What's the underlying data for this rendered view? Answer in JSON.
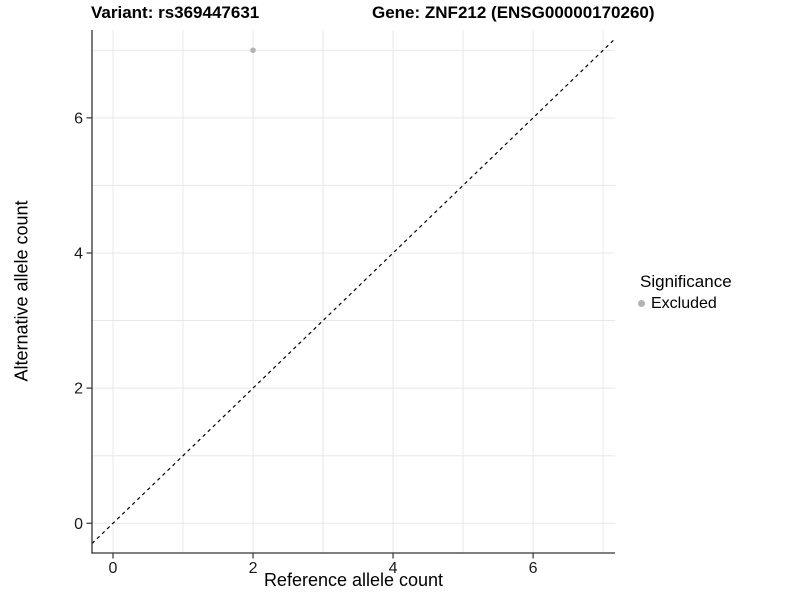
{
  "chart_data": {
    "type": "scatter",
    "title_left": "Variant: rs369447631",
    "title_right": "Gene: ZNF212 (ENSG00000170260)",
    "xlabel": "Reference allele count",
    "ylabel": "Alternative allele count",
    "xlim": [
      -0.3,
      7.17
    ],
    "ylim": [
      -0.44,
      7.3
    ],
    "x_ticks": [
      0,
      2,
      4,
      6
    ],
    "y_ticks": [
      0,
      2,
      4,
      6
    ],
    "grid_x": [
      0,
      1,
      2,
      3,
      4,
      5,
      6,
      7
    ],
    "grid_y": [
      0,
      1,
      2,
      3,
      4,
      5,
      6,
      7
    ],
    "grid": true,
    "legend_position": "right",
    "series": [
      {
        "name": "Excluded",
        "color": "#b3b3b3",
        "points": [
          {
            "x": 2,
            "y": 7
          }
        ]
      }
    ],
    "reference_line": {
      "kind": "identity y=x",
      "style": "dashed",
      "color": "#000000"
    },
    "legend": {
      "title": "Significance",
      "entries": [
        {
          "label": "Excluded",
          "color": "#b3b3b3"
        }
      ]
    },
    "colors": {
      "grid": "#e8e8e8",
      "axis": "#333333",
      "tick_label": "#1a1a1a",
      "background": "#ffffff"
    }
  }
}
